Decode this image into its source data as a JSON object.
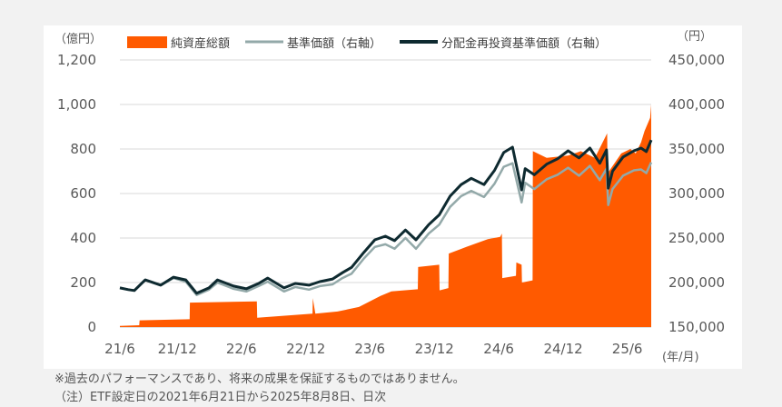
{
  "chart_data": {
    "type": "area+line",
    "legend": [
      {
        "label": "純資産総額",
        "color": "#ff5a00",
        "kind": "area"
      },
      {
        "label": "基準価額（右軸）",
        "color": "#93a9a9",
        "kind": "line"
      },
      {
        "label": "分配金再投資基準価額（右軸）",
        "color": "#0e2a30",
        "kind": "line"
      }
    ],
    "left_axis": {
      "unit": "（億円）",
      "ticks": [
        "0",
        "200",
        "400",
        "600",
        "800",
        "1,000",
        "1,200"
      ],
      "ylim": [
        0,
        1200
      ]
    },
    "right_axis": {
      "unit": "（円）",
      "ticks": [
        "150,000",
        "200,000",
        "250,000",
        "300,000",
        "350,000",
        "400,000",
        "450,000"
      ],
      "ylim": [
        150000,
        450000
      ]
    },
    "x_axis": {
      "unit": "(年/月)",
      "ticks": [
        "21/6",
        "21/12",
        "22/6",
        "22/12",
        "23/6",
        "23/12",
        "24/6",
        "24/12",
        "25/6"
      ],
      "range": [
        "2021-06-21",
        "2025-08-08"
      ]
    },
    "net_assets": {
      "name": "純資産総額",
      "points": [
        [
          "2021-06-21",
          5
        ],
        [
          "2021-08-15",
          8
        ],
        [
          "2021-08-16",
          30
        ],
        [
          "2022-01-05",
          35
        ],
        [
          "2022-01-06",
          110
        ],
        [
          "2022-07-15",
          115
        ],
        [
          "2022-07-16",
          42
        ],
        [
          "2022-12-20",
          60
        ],
        [
          "2022-12-21",
          130
        ],
        [
          "2022-12-28",
          60
        ],
        [
          "2023-03-01",
          70
        ],
        [
          "2023-05-01",
          90
        ],
        [
          "2023-07-01",
          140
        ],
        [
          "2023-08-01",
          160
        ],
        [
          "2023-10-15",
          170
        ],
        [
          "2023-10-16",
          270
        ],
        [
          "2023-12-15",
          280
        ],
        [
          "2023-12-16",
          165
        ],
        [
          "2024-01-10",
          175
        ],
        [
          "2024-01-11",
          330
        ],
        [
          "2024-03-01",
          360
        ],
        [
          "2024-05-01",
          395
        ],
        [
          "2024-06-05",
          405
        ],
        [
          "2024-06-10",
          420
        ],
        [
          "2024-06-11",
          220
        ],
        [
          "2024-07-20",
          230
        ],
        [
          "2024-07-21",
          290
        ],
        [
          "2024-08-05",
          280
        ],
        [
          "2024-08-06",
          200
        ],
        [
          "2024-09-05",
          210
        ],
        [
          "2024-09-06",
          790
        ],
        [
          "2024-10-15",
          760
        ],
        [
          "2024-12-15",
          770
        ],
        [
          "2025-01-20",
          790
        ],
        [
          "2025-03-01",
          760
        ],
        [
          "2025-04-05",
          870
        ],
        [
          "2025-04-07",
          580
        ],
        [
          "2025-04-10",
          700
        ],
        [
          "2025-05-15",
          780
        ],
        [
          "2025-06-10",
          800
        ],
        [
          "2025-06-25",
          780
        ],
        [
          "2025-07-10",
          830
        ],
        [
          "2025-07-20",
          880
        ],
        [
          "2025-08-05",
          940
        ],
        [
          "2025-08-08",
          1000
        ]
      ]
    },
    "series": [
      {
        "name": "基準価額（右軸）",
        "points": [
          [
            "2021-06-21",
            194000
          ],
          [
            "2021-07-15",
            192000
          ],
          [
            "2021-08-01",
            191000
          ],
          [
            "2021-09-01",
            203000
          ],
          [
            "2021-10-15",
            197000
          ],
          [
            "2021-11-20",
            205000
          ],
          [
            "2021-12-25",
            201000
          ],
          [
            "2022-01-25",
            186000
          ],
          [
            "2022-03-01",
            192000
          ],
          [
            "2022-03-25",
            200000
          ],
          [
            "2022-05-10",
            193000
          ],
          [
            "2022-06-15",
            190000
          ],
          [
            "2022-07-20",
            196000
          ],
          [
            "2022-08-15",
            201000
          ],
          [
            "2022-09-30",
            190000
          ],
          [
            "2022-11-01",
            195000
          ],
          [
            "2022-12-10",
            192000
          ],
          [
            "2023-01-10",
            196000
          ],
          [
            "2023-02-15",
            198000
          ],
          [
            "2023-03-15",
            205000
          ],
          [
            "2023-04-10",
            210000
          ],
          [
            "2023-05-15",
            227000
          ],
          [
            "2023-06-15",
            240000
          ],
          [
            "2023-07-15",
            243000
          ],
          [
            "2023-08-10",
            238000
          ],
          [
            "2023-09-10",
            250000
          ],
          [
            "2023-10-10",
            238000
          ],
          [
            "2023-11-15",
            255000
          ],
          [
            "2023-12-15",
            265000
          ],
          [
            "2024-01-15",
            285000
          ],
          [
            "2024-02-15",
            297000
          ],
          [
            "2024-03-15",
            303000
          ],
          [
            "2024-04-20",
            296000
          ],
          [
            "2024-05-20",
            311000
          ],
          [
            "2024-06-15",
            330000
          ],
          [
            "2024-07-10",
            334000
          ],
          [
            "2024-08-05",
            290000
          ],
          [
            "2024-08-15",
            312000
          ],
          [
            "2024-09-10",
            305000
          ],
          [
            "2024-10-15",
            316000
          ],
          [
            "2024-11-15",
            321000
          ],
          [
            "2024-12-15",
            329000
          ],
          [
            "2025-01-15",
            320000
          ],
          [
            "2025-02-15",
            331000
          ],
          [
            "2025-03-15",
            315000
          ],
          [
            "2025-04-03",
            328000
          ],
          [
            "2025-04-08",
            287000
          ],
          [
            "2025-04-20",
            305000
          ],
          [
            "2025-05-20",
            320000
          ],
          [
            "2025-06-20",
            326000
          ],
          [
            "2025-07-10",
            327000
          ],
          [
            "2025-07-25",
            323000
          ],
          [
            "2025-08-08",
            335000
          ]
        ]
      },
      {
        "name": "分配金再投資基準価額（右軸）",
        "points": [
          [
            "2021-06-21",
            194000
          ],
          [
            "2021-07-15",
            192000
          ],
          [
            "2021-08-01",
            191000
          ],
          [
            "2021-09-01",
            203000
          ],
          [
            "2021-10-15",
            197000
          ],
          [
            "2021-11-20",
            206000
          ],
          [
            "2021-12-25",
            203000
          ],
          [
            "2022-01-25",
            188000
          ],
          [
            "2022-03-01",
            194000
          ],
          [
            "2022-03-25",
            203000
          ],
          [
            "2022-05-10",
            196000
          ],
          [
            "2022-06-15",
            193000
          ],
          [
            "2022-07-20",
            199000
          ],
          [
            "2022-08-15",
            205000
          ],
          [
            "2022-09-30",
            194000
          ],
          [
            "2022-11-01",
            199000
          ],
          [
            "2022-12-10",
            197000
          ],
          [
            "2023-01-10",
            201000
          ],
          [
            "2023-02-15",
            204000
          ],
          [
            "2023-03-15",
            211000
          ],
          [
            "2023-04-10",
            217000
          ],
          [
            "2023-05-15",
            234000
          ],
          [
            "2023-06-15",
            248000
          ],
          [
            "2023-07-15",
            252000
          ],
          [
            "2023-08-10",
            247000
          ],
          [
            "2023-09-10",
            259000
          ],
          [
            "2023-10-10",
            248000
          ],
          [
            "2023-11-15",
            265000
          ],
          [
            "2023-12-15",
            276000
          ],
          [
            "2024-01-15",
            297000
          ],
          [
            "2024-02-15",
            310000
          ],
          [
            "2024-03-15",
            317000
          ],
          [
            "2024-04-20",
            310000
          ],
          [
            "2024-05-20",
            326000
          ],
          [
            "2024-06-15",
            346000
          ],
          [
            "2024-07-10",
            352000
          ],
          [
            "2024-08-05",
            304000
          ],
          [
            "2024-08-15",
            328000
          ],
          [
            "2024-09-10",
            321000
          ],
          [
            "2024-10-15",
            333000
          ],
          [
            "2024-11-15",
            339000
          ],
          [
            "2024-12-15",
            348000
          ],
          [
            "2025-01-15",
            340000
          ],
          [
            "2025-02-15",
            351000
          ],
          [
            "2025-03-15",
            334000
          ],
          [
            "2025-04-03",
            349000
          ],
          [
            "2025-04-08",
            306000
          ],
          [
            "2025-04-20",
            325000
          ],
          [
            "2025-05-20",
            341000
          ],
          [
            "2025-06-20",
            348000
          ],
          [
            "2025-07-10",
            351000
          ],
          [
            "2025-07-25",
            347000
          ],
          [
            "2025-08-08",
            360000
          ]
        ]
      }
    ],
    "grid": "horizontal"
  },
  "notes": [
    "※過去のパフォーマンスであり、将来の成果を保証するものではありません。",
    "（注）ETF設定日の2021年6月21日から2025年8月8日、日次"
  ]
}
